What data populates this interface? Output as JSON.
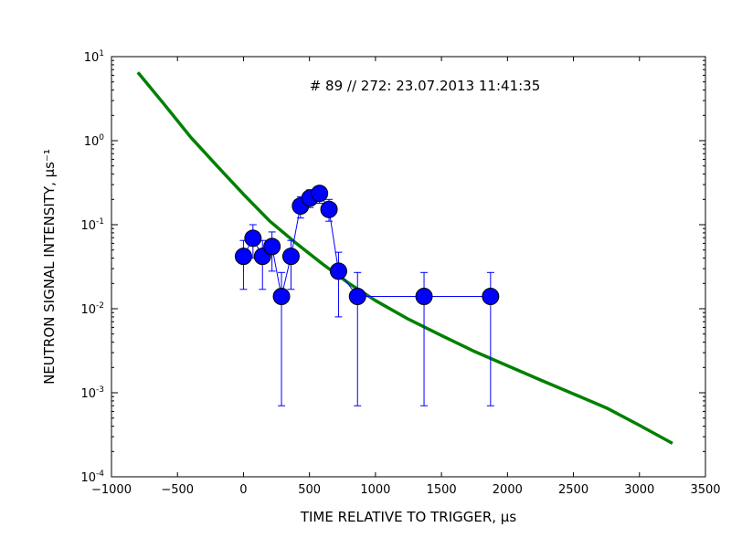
{
  "chart_data": {
    "type": "scatter",
    "title": "",
    "annotation": "# 89 // 272: 23.07.2013 11:41:35",
    "xlabel": "TIME RELATIVE TO TRIGGER, μs",
    "ylabel": "NEUTRON SIGNAL INTENSITY, μs⁻¹",
    "xlim": [
      -1000,
      3500
    ],
    "ylim": [
      0.0001,
      10
    ],
    "yscale": "log",
    "grid": false,
    "legend": "none",
    "x_ticks": [
      -1000,
      -500,
      0,
      500,
      1000,
      1500,
      2000,
      2500,
      3000,
      3500
    ],
    "x_tick_labels": [
      "−1000",
      "−500",
      "0",
      "500",
      "1000",
      "1500",
      "2000",
      "2500",
      "3000",
      "3500"
    ],
    "y_ticks": [
      {
        "value": 10,
        "base": "10",
        "exp": "1"
      },
      {
        "value": 1,
        "base": "10",
        "exp": "0"
      },
      {
        "value": 0.1,
        "base": "10",
        "exp": "-1"
      },
      {
        "value": 0.01,
        "base": "10",
        "exp": "-2"
      },
      {
        "value": 0.001,
        "base": "10",
        "exp": "-3"
      },
      {
        "value": 0.0001,
        "base": "10",
        "exp": "-4"
      }
    ],
    "series": [
      {
        "marker": "circle",
        "color": "#0000ff",
        "edge_color": "#000000",
        "points": [
          {
            "x": 0,
            "y": 0.042,
            "err_lo": 0.017,
            "err_hi": 0.065
          },
          {
            "x": 72,
            "y": 0.069,
            "err_lo": 0.04,
            "err_hi": 0.1
          },
          {
            "x": 144,
            "y": 0.042,
            "err_lo": 0.017,
            "err_hi": 0.065
          },
          {
            "x": 216,
            "y": 0.055,
            "err_lo": 0.028,
            "err_hi": 0.082
          },
          {
            "x": 288,
            "y": 0.014,
            "err_lo": 0.0007,
            "err_hi": 0.027
          },
          {
            "x": 360,
            "y": 0.042,
            "err_lo": 0.017,
            "err_hi": 0.065
          },
          {
            "x": 432,
            "y": 0.167,
            "err_lo": 0.12,
            "err_hi": 0.215
          },
          {
            "x": 504,
            "y": 0.208,
            "err_lo": 0.16,
            "err_hi": 0.26
          },
          {
            "x": 576,
            "y": 0.236,
            "err_lo": 0.18,
            "err_hi": 0.29
          },
          {
            "x": 648,
            "y": 0.152,
            "err_lo": 0.11,
            "err_hi": 0.2
          },
          {
            "x": 720,
            "y": 0.028,
            "err_lo": 0.008,
            "err_hi": 0.047
          },
          {
            "x": 864,
            "y": 0.014,
            "err_lo": 0.0007,
            "err_hi": 0.027
          },
          {
            "x": 1368,
            "y": 0.014,
            "err_lo": 0.0007,
            "err_hi": 0.027
          },
          {
            "x": 1872,
            "y": 0.014,
            "err_lo": 0.0007,
            "err_hi": 0.027
          }
        ]
      },
      {
        "type": "line",
        "color": "#008000",
        "x": [
          -800,
          -600,
          -400,
          -200,
          0,
          200,
          400,
          600,
          800,
          1000,
          1250,
          1500,
          1750,
          2000,
          2250,
          2500,
          2750,
          3000,
          3250
        ],
        "values": [
          6.5,
          2.7,
          1.1,
          0.5,
          0.23,
          0.11,
          0.06,
          0.034,
          0.02,
          0.0125,
          0.0075,
          0.0048,
          0.0031,
          0.0021,
          0.00142,
          0.00097,
          0.00066,
          0.00041,
          0.00025
        ]
      }
    ]
  }
}
